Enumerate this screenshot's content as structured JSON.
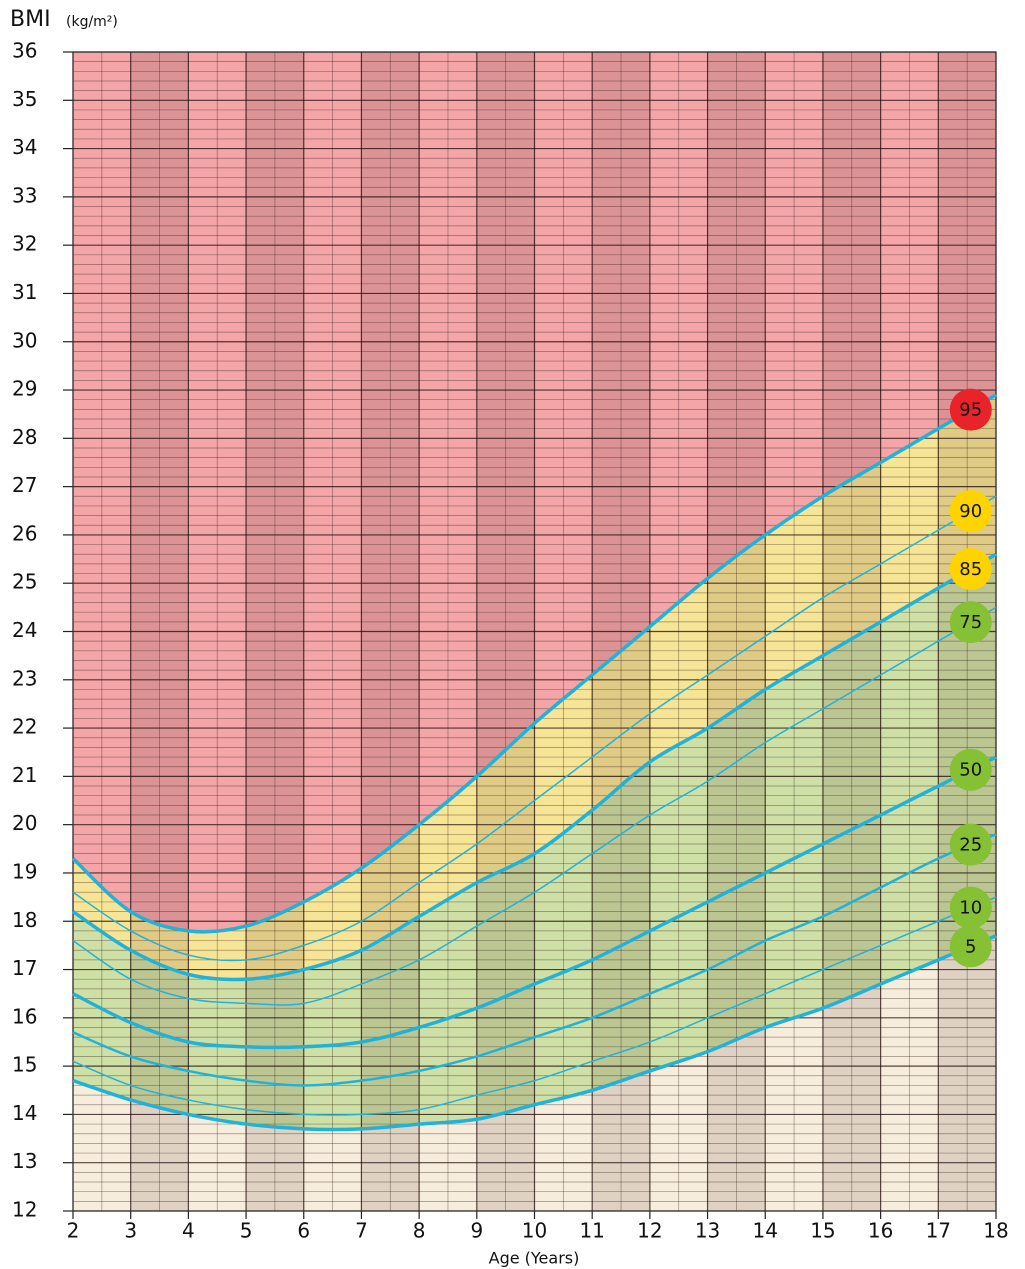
{
  "chart_data": {
    "type": "line",
    "y_label": "BMI",
    "y_unit": "(kg/m²)",
    "x_label": "Age (Years)",
    "x": [
      2,
      3,
      4,
      5,
      6,
      7,
      8,
      9,
      10,
      11,
      12,
      13,
      14,
      15,
      16,
      17,
      18
    ],
    "xlim": [
      2,
      18
    ],
    "xticks": [
      2,
      3,
      4,
      5,
      6,
      7,
      8,
      9,
      10,
      11,
      12,
      13,
      14,
      15,
      16,
      17,
      18
    ],
    "ylim": [
      12,
      36
    ],
    "yticks": [
      12,
      13,
      14,
      15,
      16,
      17,
      18,
      19,
      20,
      21,
      22,
      23,
      24,
      25,
      26,
      27,
      28,
      29,
      30,
      31,
      32,
      33,
      34,
      35,
      36
    ],
    "grid": true,
    "line_color": "#22b2d8",
    "fill_below": "#f6eddc",
    "series": [
      {
        "name": "5",
        "color": "#86c034",
        "width": 3.5,
        "zone_color": "#cfe0a6",
        "values": [
          14.7,
          14.3,
          14.0,
          13.8,
          13.7,
          13.7,
          13.8,
          13.9,
          14.2,
          14.5,
          14.9,
          15.3,
          15.8,
          16.2,
          16.7,
          17.2,
          17.7
        ]
      },
      {
        "name": "10",
        "color": "#86c034",
        "width": 1.5,
        "values": [
          15.1,
          14.6,
          14.3,
          14.1,
          14.0,
          14.0,
          14.1,
          14.4,
          14.7,
          15.1,
          15.5,
          16.0,
          16.5,
          17.0,
          17.5,
          18.0,
          18.5
        ]
      },
      {
        "name": "25",
        "color": "#86c034",
        "width": 2.5,
        "values": [
          15.7,
          15.2,
          14.9,
          14.7,
          14.6,
          14.7,
          14.9,
          15.2,
          15.6,
          16.0,
          16.5,
          17.0,
          17.6,
          18.1,
          18.7,
          19.3,
          19.8
        ]
      },
      {
        "name": "50",
        "color": "#86c034",
        "width": 3.5,
        "values": [
          16.5,
          15.9,
          15.5,
          15.4,
          15.4,
          15.5,
          15.8,
          16.2,
          16.7,
          17.2,
          17.8,
          18.4,
          19.0,
          19.6,
          20.2,
          20.8,
          21.4
        ]
      },
      {
        "name": "75",
        "color": "#86c034",
        "width": 1.5,
        "values": [
          17.6,
          16.8,
          16.4,
          16.3,
          16.3,
          16.7,
          17.2,
          17.9,
          18.6,
          19.4,
          20.2,
          20.9,
          21.7,
          22.4,
          23.1,
          23.8,
          24.5
        ]
      },
      {
        "name": "85",
        "color": "#fdd400",
        "width": 3.5,
        "zone_color": "#f6e596",
        "values": [
          18.2,
          17.4,
          16.9,
          16.8,
          17.0,
          17.4,
          18.1,
          18.8,
          19.4,
          20.3,
          21.3,
          22.0,
          22.8,
          23.5,
          24.2,
          24.9,
          25.6
        ]
      },
      {
        "name": "90",
        "color": "#fdd400",
        "width": 1.5,
        "values": [
          18.6,
          17.8,
          17.3,
          17.2,
          17.5,
          18.0,
          18.8,
          19.6,
          20.5,
          21.4,
          22.3,
          23.1,
          23.9,
          24.7,
          25.4,
          26.1,
          26.8
        ]
      },
      {
        "name": "95",
        "color": "#e8232a",
        "width": 3.5,
        "zone_color": "#f3a5a8",
        "values": [
          19.3,
          18.2,
          17.8,
          17.9,
          18.4,
          19.1,
          20.0,
          21.0,
          22.1,
          23.1,
          24.1,
          25.1,
          26.0,
          26.8,
          27.5,
          28.2,
          28.9
        ]
      }
    ]
  }
}
